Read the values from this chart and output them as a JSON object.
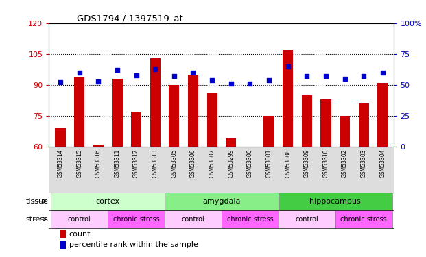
{
  "title": "GDS1794 / 1397519_at",
  "samples": [
    "GSM53314",
    "GSM53315",
    "GSM53316",
    "GSM53311",
    "GSM53312",
    "GSM53313",
    "GSM53305",
    "GSM53306",
    "GSM53307",
    "GSM53299",
    "GSM53300",
    "GSM53301",
    "GSM53308",
    "GSM53309",
    "GSM53310",
    "GSM53302",
    "GSM53303",
    "GSM53304"
  ],
  "counts": [
    69,
    94,
    61,
    93,
    77,
    103,
    90,
    95,
    86,
    64,
    60,
    75,
    107,
    85,
    83,
    75,
    81,
    91
  ],
  "percentiles": [
    52,
    60,
    53,
    62,
    58,
    63,
    57,
    60,
    54,
    51,
    51,
    54,
    65,
    57,
    57,
    55,
    57,
    60
  ],
  "bar_color": "#cc0000",
  "dot_color": "#0000cc",
  "ylim_left": [
    60,
    120
  ],
  "ylim_right": [
    0,
    100
  ],
  "yticks_left": [
    60,
    75,
    90,
    105,
    120
  ],
  "yticks_right": [
    0,
    25,
    50,
    75,
    100
  ],
  "hlines": [
    75,
    90,
    105
  ],
  "tissue_groups": [
    {
      "label": "cortex",
      "start": 0,
      "end": 6,
      "color": "#ccffcc"
    },
    {
      "label": "amygdala",
      "start": 6,
      "end": 12,
      "color": "#88ee88"
    },
    {
      "label": "hippocampus",
      "start": 12,
      "end": 18,
      "color": "#44cc44"
    }
  ],
  "stress_groups": [
    {
      "label": "control",
      "start": 0,
      "end": 3,
      "color": "#ffccff"
    },
    {
      "label": "chronic stress",
      "start": 3,
      "end": 6,
      "color": "#ff66ff"
    },
    {
      "label": "control",
      "start": 6,
      "end": 9,
      "color": "#ffccff"
    },
    {
      "label": "chronic stress",
      "start": 9,
      "end": 12,
      "color": "#ff66ff"
    },
    {
      "label": "control",
      "start": 12,
      "end": 15,
      "color": "#ffccff"
    },
    {
      "label": "chronic stress",
      "start": 15,
      "end": 18,
      "color": "#ff66ff"
    }
  ],
  "legend_count_color": "#cc0000",
  "legend_dot_color": "#0000cc",
  "left_axis_color": "#cc0000",
  "right_axis_color": "#0000cc",
  "bar_width": 0.55,
  "sample_label_gray": "#dddddd"
}
